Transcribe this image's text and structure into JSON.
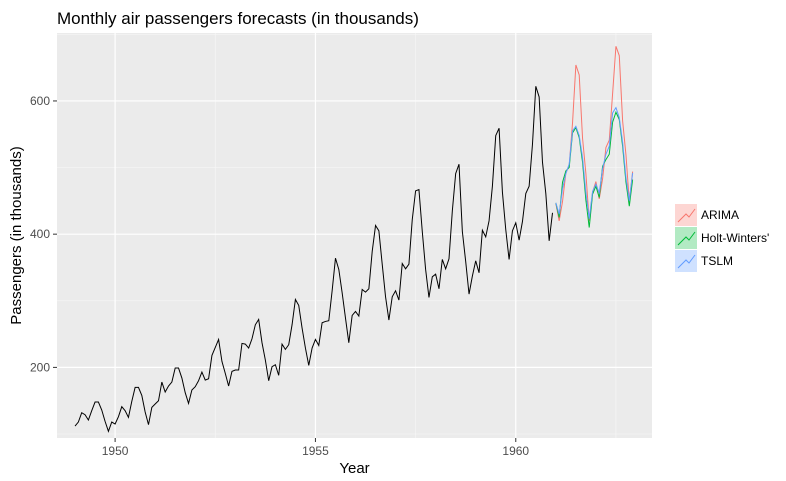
{
  "chart_data": {
    "type": "line",
    "title": "Monthly air passengers forecasts (in thousands)",
    "xlabel": "Year",
    "ylabel": "Passengers (in thousands)",
    "xlim": [
      1948.55,
      1963.4
    ],
    "ylim": [
      94,
      702
    ],
    "x_ticks": [
      1950,
      1955,
      1960
    ],
    "x_tick_labels": [
      "1950",
      "1955",
      "1960"
    ],
    "y_ticks": [
      200,
      400,
      600
    ],
    "y_tick_labels": [
      "200",
      "400",
      "600"
    ],
    "grid": true,
    "legend_position": "right",
    "colors": {
      "panel": "#EBEBEB",
      "grid": "#FFFFFF",
      "history": "#000000",
      "ARIMA": "#F8766D",
      "Holt-Winters'": "#00BA38",
      "TSLM": "#619CFF"
    },
    "history": {
      "start_year": 1949,
      "frequency": 12,
      "values": [
        112,
        118,
        132,
        129,
        121,
        135,
        148,
        148,
        136,
        119,
        104,
        118,
        115,
        126,
        141,
        135,
        125,
        149,
        170,
        170,
        158,
        133,
        114,
        140,
        145,
        150,
        178,
        163,
        172,
        178,
        199,
        199,
        184,
        162,
        146,
        166,
        171,
        180,
        193,
        181,
        183,
        218,
        230,
        242,
        209,
        191,
        172,
        194,
        196,
        196,
        236,
        235,
        229,
        243,
        264,
        272,
        237,
        211,
        180,
        201,
        204,
        188,
        235,
        227,
        234,
        264,
        302,
        293,
        259,
        229,
        203,
        229,
        242,
        233,
        267,
        269,
        270,
        315,
        364,
        347,
        312,
        274,
        237,
        278,
        284,
        277,
        317,
        313,
        318,
        374,
        413,
        405,
        355,
        306,
        271,
        306,
        315,
        301,
        356,
        348,
        355,
        422,
        465,
        467,
        404,
        347,
        305,
        336,
        340,
        318,
        362,
        348,
        363,
        435,
        491,
        505,
        404,
        359,
        310,
        337,
        360,
        342,
        406,
        396,
        420,
        472,
        548,
        559,
        463,
        407,
        362,
        405,
        417,
        391,
        419,
        461,
        472,
        535,
        622,
        606,
        508,
        461,
        390,
        432
      ]
    },
    "forecasts": {
      "start_year": 1961,
      "frequency": 12,
      "series": [
        {
          "name": "ARIMA",
          "values": [
            446,
            420,
            449,
            492,
            503,
            567,
            654,
            639,
            544,
            491,
            420,
            463,
            479,
            453,
            483,
            530,
            541,
            611,
            682,
            668,
            570,
            519,
            449,
            494
          ]
        },
        {
          "name": "Holt-Winters'",
          "values": [
            447,
            425,
            478,
            495,
            500,
            552,
            560,
            545,
            508,
            451,
            410,
            460,
            472,
            455,
            502,
            512,
            520,
            568,
            583,
            572,
            532,
            478,
            442,
            482
          ]
        },
        {
          "name": "TSLM",
          "values": [
            447,
            430,
            468,
            491,
            505,
            555,
            562,
            548,
            515,
            462,
            423,
            464,
            475,
            462,
            498,
            520,
            532,
            582,
            590,
            575,
            538,
            485,
            450,
            492
          ]
        }
      ]
    }
  }
}
